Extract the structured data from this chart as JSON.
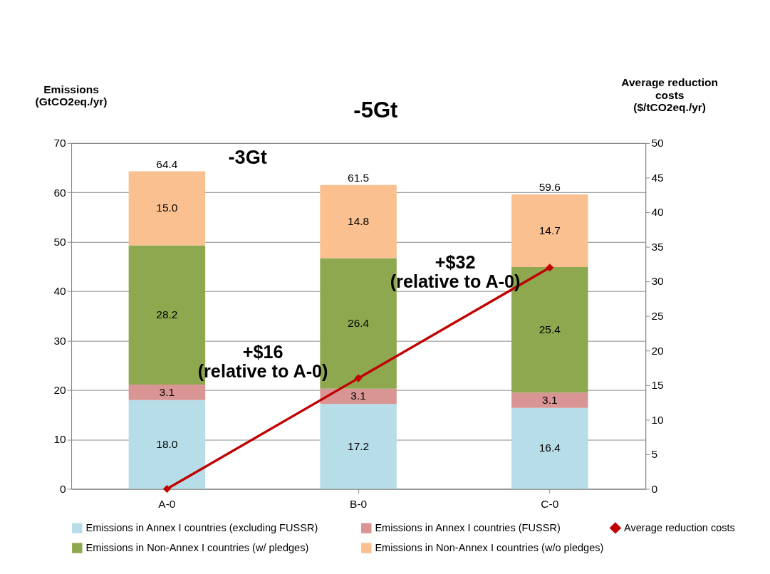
{
  "chart_data": {
    "type": "bar",
    "stacked": true,
    "categories": [
      "A-0",
      "B-0",
      "C-0"
    ],
    "ylabel": "Emissions\n(GtCO2eq./yr)",
    "y2label": "Average reduction\ncosts\n($/tCO2eq./yr)",
    "ylim": [
      0,
      70
    ],
    "yticks": [
      0,
      10,
      20,
      30,
      40,
      50,
      60,
      70
    ],
    "y2lim": [
      0,
      50
    ],
    "y2ticks": [
      0,
      5,
      10,
      15,
      20,
      25,
      30,
      35,
      40,
      45,
      50
    ],
    "grid": "y",
    "legend": "bottom",
    "marker": "diamond",
    "line_style": "solid",
    "series": [
      {
        "name": "Emissions in Annex I countries (excluding FUSSR)",
        "color": "#b7dde8",
        "values": [
          18.0,
          17.2,
          16.4
        ],
        "value_labels": [
          "18.0",
          "17.2",
          "16.4"
        ]
      },
      {
        "name": "Emissions in Annex I countries (FUSSR)",
        "color": "#d99594",
        "values": [
          3.1,
          3.1,
          3.1
        ],
        "value_labels": [
          "3.1",
          "3.1",
          "3.1"
        ]
      },
      {
        "name": "Emissions in Non-Annex I countries (w/ pledges)",
        "color": "#8ea84f",
        "values": [
          28.2,
          26.4,
          25.4
        ],
        "value_labels": [
          "28.2",
          "26.4",
          "25.4"
        ]
      },
      {
        "name": "Emissions in Non-Annex I countries (w/o pledges)",
        "color": "#fac090",
        "values": [
          15.0,
          14.8,
          14.7
        ],
        "value_labels": [
          "15.0",
          "14.8",
          "14.7"
        ]
      },
      {
        "name": "Average reduction costs",
        "color": "#c00000",
        "type": "line",
        "axis": "y2",
        "values": [
          0,
          16,
          32
        ]
      }
    ],
    "totals": [
      "64.4",
      "61.5",
      "59.6"
    ],
    "annotations": [
      "-5Gt",
      "-3Gt",
      "+$16\n(relative to A-0)",
      "+$32\n(relative to A-0)"
    ]
  }
}
